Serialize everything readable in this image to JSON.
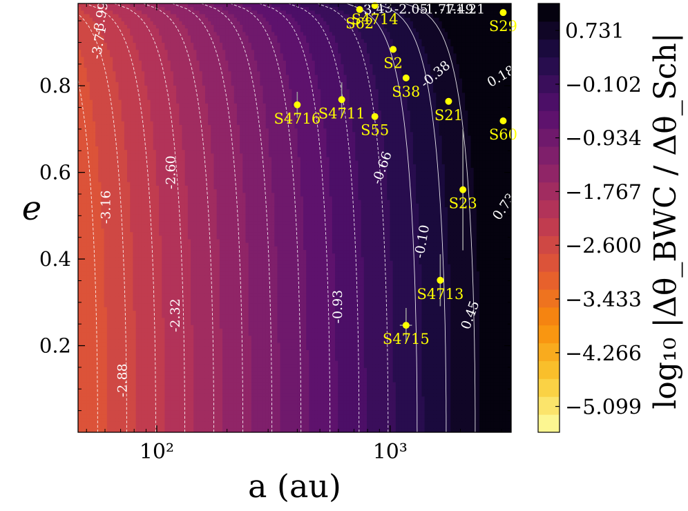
{
  "chart_data": {
    "type": "heatmap",
    "title": "",
    "xlabel": "a (au)",
    "ylabel": "e",
    "x_scale": "log",
    "xlim": [
      46,
      3300
    ],
    "ylim": [
      0.0,
      0.99
    ],
    "x_ticks": [
      {
        "value": 100,
        "label": "10²"
      },
      {
        "value": 1000,
        "label": "10³"
      }
    ],
    "y_ticks": [
      0.2,
      0.4,
      0.6,
      0.8
    ],
    "colorbar": {
      "label": "log₁₀ |Δθ_BWC / Δθ_Sch|",
      "ticks": [
        "0.731",
        "−0.102",
        "−0.934",
        "−1.767",
        "−2.600",
        "−3.433",
        "−4.266",
        "−5.099"
      ],
      "tick_values": [
        0.731,
        -0.102,
        -0.934,
        -1.767,
        -2.6,
        -3.433,
        -4.266,
        -5.099
      ],
      "range": [
        -5.5,
        1.15
      ],
      "colormap": "inferno_r",
      "levels": 24
    },
    "contour_labels": [
      {
        "text": "-3.43",
        "a": 870,
        "e": 0.975,
        "rot": -5
      },
      {
        "text": "-2.05",
        "a": 1230,
        "e": 0.975,
        "rot": 0
      },
      {
        "text": "-1.77",
        "a": 1600,
        "e": 0.975,
        "rot": 0
      },
      {
        "text": "-1.49",
        "a": 1930,
        "e": 0.975,
        "rot": 0
      },
      {
        "text": "-1.21",
        "a": 2160,
        "e": 0.975,
        "rot": 0
      },
      {
        "text": "-3.99",
        "a": 58,
        "e": 0.955,
        "rot": -80
      },
      {
        "text": "-3.71",
        "a": 57,
        "e": 0.9,
        "rot": -80
      },
      {
        "text": "-3.16",
        "a": 61,
        "e": 0.52,
        "rot": -90
      },
      {
        "text": "-2.60",
        "a": 116,
        "e": 0.6,
        "rot": -90
      },
      {
        "text": "-2.32",
        "a": 121,
        "e": 0.27,
        "rot": -90
      },
      {
        "text": "-2.88",
        "a": 72,
        "e": 0.12,
        "rot": -90
      },
      {
        "text": "-0.93",
        "a": 600,
        "e": 0.29,
        "rot": -90
      },
      {
        "text": "-0.66",
        "a": 930,
        "e": 0.61,
        "rot": -70
      },
      {
        "text": "-0.38",
        "a": 1570,
        "e": 0.825,
        "rot": -40
      },
      {
        "text": "-0.10",
        "a": 1380,
        "e": 0.44,
        "rot": -80
      },
      {
        "text": "0.18",
        "a": 3000,
        "e": 0.82,
        "rot": -30
      },
      {
        "text": "0.45",
        "a": 2220,
        "e": 0.27,
        "rot": -70
      },
      {
        "text": "0.73",
        "a": 3100,
        "e": 0.52,
        "rot": -55
      }
    ],
    "stars": [
      {
        "name": "S62",
        "a": 740,
        "e": 0.976,
        "err_a": 0,
        "err_e": 0
      },
      {
        "name": "S4714",
        "a": 860,
        "e": 0.985,
        "err_a": 0,
        "err_e": 0
      },
      {
        "name": "S29",
        "a": 3050,
        "e": 0.969,
        "err_a": 0,
        "err_e": 0
      },
      {
        "name": "S2",
        "a": 1030,
        "e": 0.884,
        "err_a": 0,
        "err_e": 0
      },
      {
        "name": "S38",
        "a": 1170,
        "e": 0.818,
        "err_a": 0,
        "err_e": 0
      },
      {
        "name": "S21",
        "a": 1780,
        "e": 0.764,
        "err_a": 0,
        "err_e": 0
      },
      {
        "name": "S4716",
        "a": 400,
        "e": 0.756,
        "err_a": 0,
        "err_e": 0.03
      },
      {
        "name": "S4711",
        "a": 620,
        "e": 0.768,
        "err_a": 0,
        "err_e": 0.04
      },
      {
        "name": "S55",
        "a": 860,
        "e": 0.729,
        "err_a": 0,
        "err_e": 0
      },
      {
        "name": "S60",
        "a": 3050,
        "e": 0.719,
        "err_a": 0,
        "err_e": 0
      },
      {
        "name": "S23",
        "a": 2050,
        "e": 0.56,
        "err_a": 0,
        "err_e": 0.14
      },
      {
        "name": "S4713",
        "a": 1640,
        "e": 0.351,
        "err_a": 0,
        "err_e": 0.06
      },
      {
        "name": "S4715",
        "a": 1170,
        "e": 0.247,
        "err_a": 70,
        "err_e": 0.04
      }
    ]
  }
}
